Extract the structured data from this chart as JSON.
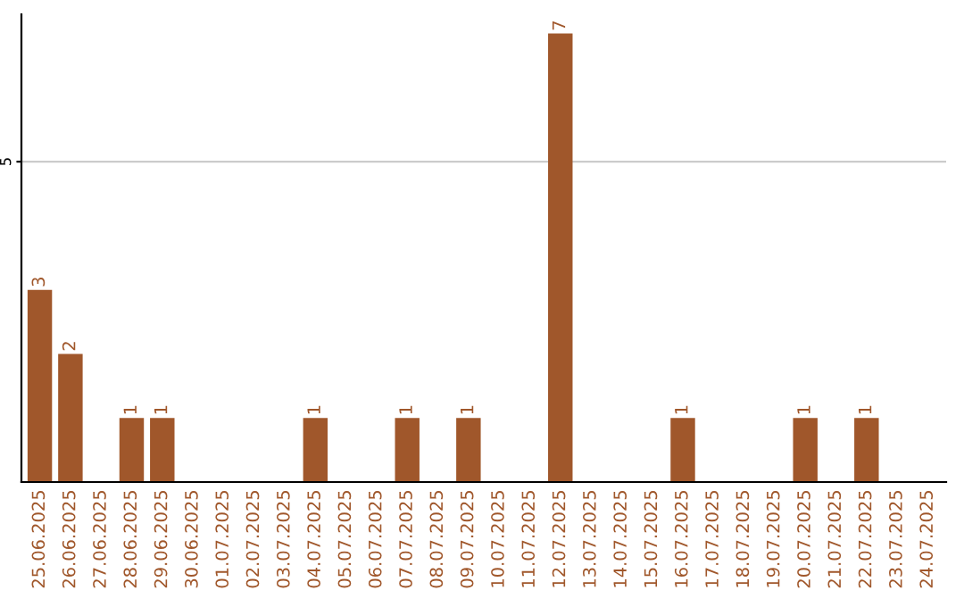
{
  "chart_data": {
    "type": "bar",
    "categories": [
      "25.06.2025",
      "26.06.2025",
      "27.06.2025",
      "28.06.2025",
      "29.06.2025",
      "30.06.2025",
      "01.07.2025",
      "02.07.2025",
      "03.07.2025",
      "04.07.2025",
      "05.07.2025",
      "06.07.2025",
      "07.07.2025",
      "08.07.2025",
      "09.07.2025",
      "10.07.2025",
      "11.07.2025",
      "12.07.2025",
      "13.07.2025",
      "14.07.2025",
      "15.07.2025",
      "16.07.2025",
      "17.07.2025",
      "18.07.2025",
      "19.07.2025",
      "20.07.2025",
      "21.07.2025",
      "22.07.2025",
      "23.07.2025",
      "24.07.2025"
    ],
    "values": [
      3,
      2,
      0,
      1,
      1,
      0,
      0,
      0,
      0,
      1,
      0,
      0,
      1,
      0,
      1,
      0,
      0,
      7,
      0,
      0,
      0,
      1,
      0,
      0,
      0,
      1,
      0,
      1,
      0,
      0
    ],
    "value_labels": [
      "3",
      "2",
      null,
      "1",
      "1",
      null,
      null,
      null,
      null,
      "1",
      null,
      null,
      "1",
      null,
      "1",
      null,
      null,
      "7",
      null,
      null,
      null,
      "1",
      null,
      null,
      null,
      "1",
      null,
      "1",
      null,
      null
    ],
    "color": "#a0572b",
    "ylim": [
      0,
      7.3
    ],
    "yticks": [
      5
    ],
    "grid": "y"
  }
}
